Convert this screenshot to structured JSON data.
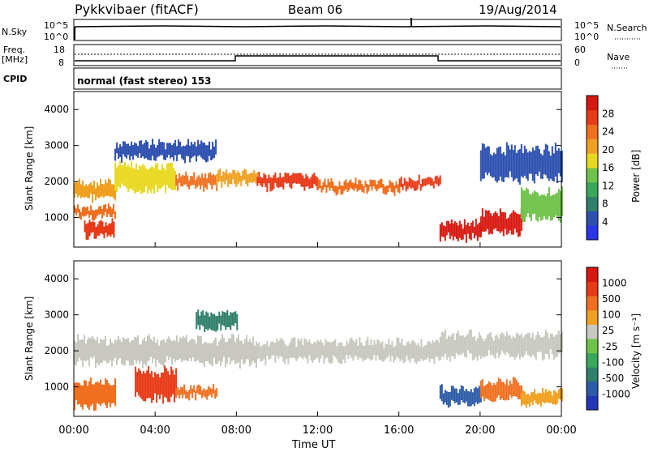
{
  "header": {
    "title": "Pykkvibaer (fitACF)",
    "beam": "Beam 06",
    "date": "19/Aug/2014"
  },
  "panels": {
    "nsky": {
      "left_label": "N.Sky",
      "right_label": "N.Search",
      "ticks_left": [
        "10^5",
        "10^0"
      ],
      "ticks_right": [
        "10^5",
        "10^0"
      ]
    },
    "freq": {
      "left_label_1": "Freq.",
      "left_label_2": "[MHz]",
      "right_label": "Nave",
      "ticks_left": [
        "18",
        "8"
      ],
      "ticks_right": [
        "60",
        "0"
      ]
    },
    "cpid": {
      "label": "CPID",
      "text": "normal (fast stereo) 153"
    }
  },
  "chart_data": [
    {
      "type": "heatmap",
      "name": "power",
      "ylabel": "Slant Range [km]",
      "ylim": [
        180,
        4500
      ],
      "yticks": [
        "4000",
        "3000",
        "2000",
        "1000"
      ],
      "colorbar_label": "Power [dB]",
      "colorbar_ticks": [
        "28",
        "24",
        "20",
        "16",
        "12",
        "8",
        "4"
      ],
      "colors": [
        "#2a34e8",
        "#2c4fb0",
        "#2f7f6a",
        "#3aa85a",
        "#6fc24a",
        "#e8d820",
        "#f0a020",
        "#f07020",
        "#e83a18",
        "#d81810"
      ],
      "bands": [
        {
          "x": [
            0,
            2
          ],
          "y": [
            1500,
            2000
          ],
          "level": 6
        },
        {
          "x": [
            0,
            2
          ],
          "y": [
            1000,
            1300
          ],
          "level": 7
        },
        {
          "x": [
            0.5,
            2
          ],
          "y": [
            400,
            900
          ],
          "level": 8
        },
        {
          "x": [
            2,
            5
          ],
          "y": [
            1700,
            2500
          ],
          "level": 5
        },
        {
          "x": [
            5,
            7
          ],
          "y": [
            1800,
            2200
          ],
          "level": 7
        },
        {
          "x": [
            7,
            9
          ],
          "y": [
            1900,
            2300
          ],
          "level": 6
        },
        {
          "x": [
            9,
            12
          ],
          "y": [
            1800,
            2200
          ],
          "level": 8
        },
        {
          "x": [
            12,
            16
          ],
          "y": [
            1700,
            2000
          ],
          "level": 7
        },
        {
          "x": [
            16,
            18
          ],
          "y": [
            1800,
            2100
          ],
          "level": 8
        },
        {
          "x": [
            18,
            20
          ],
          "y": [
            400,
            900
          ],
          "level": 9
        },
        {
          "x": [
            20,
            22
          ],
          "y": [
            500,
            1200
          ],
          "level": 9
        },
        {
          "x": [
            22,
            24
          ],
          "y": [
            900,
            1800
          ],
          "level": 4
        },
        {
          "x": [
            2,
            7
          ],
          "y": [
            2600,
            3100
          ],
          "level": 1
        },
        {
          "x": [
            20,
            24
          ],
          "y": [
            2000,
            3000
          ],
          "level": 1
        }
      ]
    },
    {
      "type": "heatmap",
      "name": "velocity",
      "ylabel": "Slant Range [km]",
      "ylim": [
        180,
        4500
      ],
      "yticks": [
        "4000",
        "3000",
        "2000",
        "1000"
      ],
      "xticks": [
        "00:00",
        "04:00",
        "08:00",
        "12:00",
        "16:00",
        "20:00",
        "00:00"
      ],
      "xlabel": "Time UT",
      "colorbar_label": "Velocity [m s⁻¹]",
      "colorbar_ticks": [
        "1000",
        "500",
        "100",
        "25",
        "-25",
        "-100",
        "-500",
        "-1000"
      ],
      "colors": [
        "#2436b8",
        "#2c5aa8",
        "#2f7f6a",
        "#3aa85a",
        "#6fc24a",
        "#c8c8c0",
        "#f0a020",
        "#f07020",
        "#e83a18",
        "#d81810"
      ],
      "bands": [
        {
          "x": [
            0,
            9
          ],
          "y": [
            1600,
            2400
          ],
          "level": 5
        },
        {
          "x": [
            9,
            18
          ],
          "y": [
            1700,
            2300
          ],
          "level": 5
        },
        {
          "x": [
            18,
            24
          ],
          "y": [
            1800,
            2500
          ],
          "level": 5
        },
        {
          "x": [
            0,
            2
          ],
          "y": [
            400,
            1200
          ],
          "level": 7
        },
        {
          "x": [
            3,
            5
          ],
          "y": [
            600,
            1500
          ],
          "level": 8
        },
        {
          "x": [
            5,
            7
          ],
          "y": [
            700,
            1000
          ],
          "level": 7
        },
        {
          "x": [
            18,
            20
          ],
          "y": [
            500,
            1000
          ],
          "level": 1
        },
        {
          "x": [
            20,
            22
          ],
          "y": [
            600,
            1200
          ],
          "level": 7
        },
        {
          "x": [
            22,
            24
          ],
          "y": [
            500,
            900
          ],
          "level": 6
        },
        {
          "x": [
            6,
            8
          ],
          "y": [
            2600,
            3100
          ],
          "level": 2
        }
      ]
    }
  ]
}
